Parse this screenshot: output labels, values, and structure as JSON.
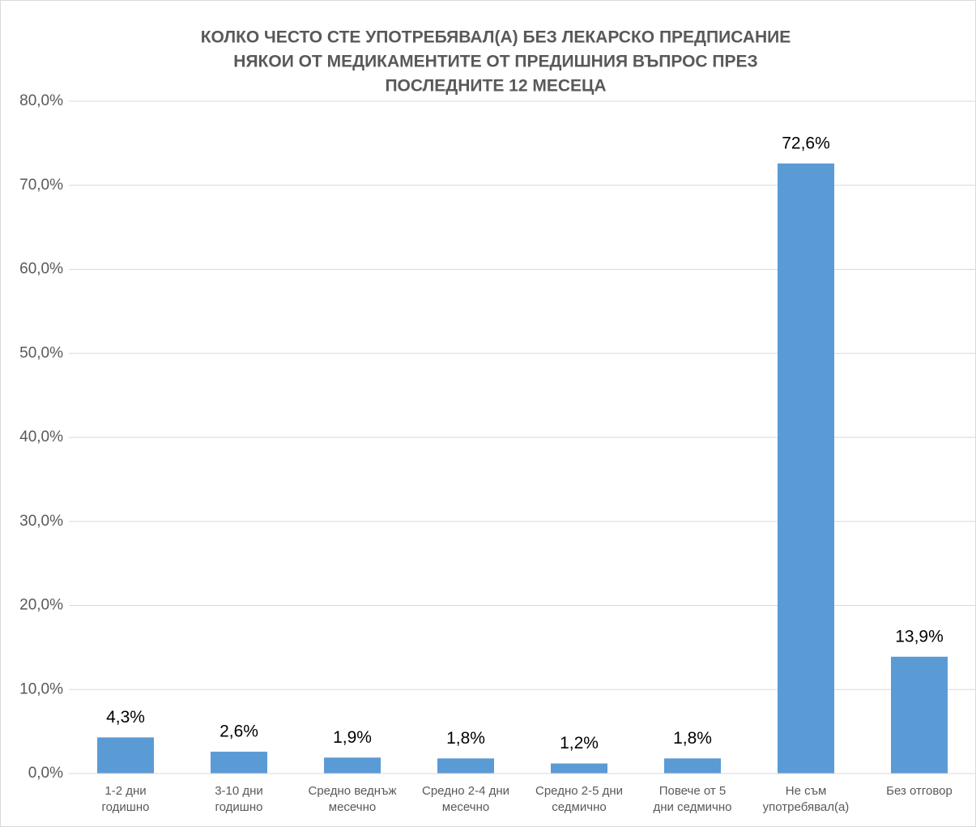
{
  "chart_data": {
    "type": "bar",
    "title": [
      "КОЛКО ЧЕСТО СТЕ УПОТРЕБЯВАЛ(А) БЕЗ ЛЕКАРСКО ПРЕДПИСАНИЕ",
      "НЯКОИ ОТ МЕДИКАМЕНТИТЕ ОТ ПРЕДИШНИЯ ВЪПРОС ПРЕЗ",
      "ПОСЛЕДНИТЕ 12 МЕСЕЦА"
    ],
    "categories": [
      "1-2 дни годишно",
      "3-10 дни годишно",
      "Средно веднъж месечно",
      "Средно 2-4 дни месечно",
      "Средно 2-5 дни седмично",
      "Повече от 5 дни седмично",
      "Не съм употребявал(а)",
      "Без отговор"
    ],
    "values": [
      4.3,
      2.6,
      1.9,
      1.8,
      1.2,
      1.8,
      72.6,
      13.9
    ],
    "value_labels": [
      "4,3%",
      "2,6%",
      "1,9%",
      "1,8%",
      "1,2%",
      "1,8%",
      "72,6%",
      "13,9%"
    ],
    "color": "#5b9bd5",
    "ylim": [
      0,
      80
    ],
    "yticks": [
      {
        "value": 0,
        "label": "0,0%"
      },
      {
        "value": 10,
        "label": "10,0%"
      },
      {
        "value": 20,
        "label": "20,0%"
      },
      {
        "value": 30,
        "label": "30,0%"
      },
      {
        "value": 40,
        "label": "40,0%"
      },
      {
        "value": 50,
        "label": "50,0%"
      },
      {
        "value": 60,
        "label": "60,0%"
      },
      {
        "value": 70,
        "label": "70,0%"
      },
      {
        "value": 80,
        "label": "80,0%"
      }
    ],
    "grid": true
  }
}
